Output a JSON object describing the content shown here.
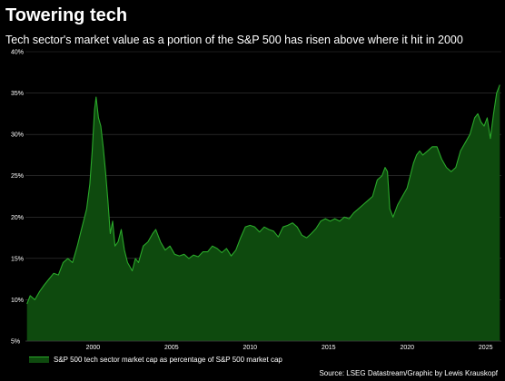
{
  "title": "Towering tech",
  "subtitle": "Tech sector's market value as a portion of the S&P 500 has risen above where it hit in 2000",
  "legend_label": "S&P 500 tech sector market cap as percentage of S&P 500 market cap",
  "source": "Source: LSEG Datastream/Graphic by Lewis Krauskopf",
  "colors": {
    "background": "#000000",
    "area_fill": "#0e4a0e",
    "line": "#2aa82a",
    "grid": "#3a3a3a",
    "text": "#ffffff"
  },
  "chart_data": {
    "type": "area",
    "title": "Towering tech",
    "subtitle": "Tech sector's market value as a portion of the S&P 500 has risen above where it hit in 2000",
    "xlabel": "",
    "ylabel": "",
    "xlim": [
      1995.7,
      2026.0
    ],
    "ylim": [
      5,
      40
    ],
    "y_ticks": [
      5,
      10,
      15,
      20,
      25,
      30,
      35,
      40
    ],
    "y_tick_labels": [
      "5%",
      "10%",
      "15%",
      "20%",
      "25%",
      "30%",
      "35%",
      "40%"
    ],
    "x_ticks": [
      2000,
      2005,
      2010,
      2015,
      2020,
      2025
    ],
    "x_tick_labels": [
      "2000",
      "2005",
      "2010",
      "2015",
      "2020",
      "2025"
    ],
    "grid": "horizontal",
    "legend_position": "bottom-left",
    "series": [
      {
        "name": "S&P 500 tech sector market cap as percentage of S&P 500 market cap",
        "x": [
          1995.8,
          1996.0,
          1996.3,
          1996.6,
          1996.9,
          1997.2,
          1997.5,
          1997.8,
          1998.1,
          1998.4,
          1998.7,
          1999.0,
          1999.2,
          1999.4,
          1999.6,
          1999.8,
          1999.95,
          2000.1,
          2000.2,
          2000.35,
          2000.5,
          2000.65,
          2000.8,
          2000.95,
          2001.1,
          2001.25,
          2001.4,
          2001.6,
          2001.8,
          2002.0,
          2002.2,
          2002.5,
          2002.7,
          2002.9,
          2003.2,
          2003.5,
          2003.8,
          2004.0,
          2004.3,
          2004.6,
          2004.9,
          2005.2,
          2005.5,
          2005.8,
          2006.1,
          2006.4,
          2006.7,
          2007.0,
          2007.3,
          2007.6,
          2007.9,
          2008.2,
          2008.5,
          2008.8,
          2009.1,
          2009.4,
          2009.7,
          2010.0,
          2010.3,
          2010.6,
          2010.9,
          2011.2,
          2011.5,
          2011.8,
          2012.1,
          2012.4,
          2012.7,
          2013.0,
          2013.3,
          2013.6,
          2013.9,
          2014.2,
          2014.5,
          2014.8,
          2015.1,
          2015.4,
          2015.7,
          2016.0,
          2016.3,
          2016.6,
          2016.9,
          2017.2,
          2017.5,
          2017.8,
          2018.1,
          2018.4,
          2018.6,
          2018.75,
          2018.9,
          2019.1,
          2019.4,
          2019.7,
          2020.0,
          2020.2,
          2020.4,
          2020.6,
          2020.8,
          2021.0,
          2021.3,
          2021.6,
          2021.9,
          2022.2,
          2022.5,
          2022.8,
          2023.1,
          2023.4,
          2023.7,
          2024.0,
          2024.3,
          2024.5,
          2024.7,
          2024.9,
          2025.1,
          2025.3,
          2025.5,
          2025.7,
          2025.9
        ],
        "values": [
          9.5,
          10.5,
          10.0,
          11.0,
          11.8,
          12.5,
          13.2,
          13.0,
          14.5,
          15.0,
          14.5,
          16.5,
          18.0,
          19.5,
          21.0,
          24.0,
          28.0,
          33.0,
          34.5,
          32.0,
          31.0,
          28.5,
          25.5,
          22.0,
          18.0,
          19.5,
          16.5,
          17.0,
          18.5,
          16.0,
          14.5,
          13.5,
          15.0,
          14.5,
          16.5,
          17.0,
          18.0,
          18.5,
          17.0,
          16.0,
          16.5,
          15.5,
          15.3,
          15.5,
          15.0,
          15.4,
          15.2,
          15.8,
          15.8,
          16.5,
          16.2,
          15.7,
          16.2,
          15.3,
          16.0,
          17.5,
          18.8,
          19.0,
          18.8,
          18.2,
          18.8,
          18.5,
          18.3,
          17.6,
          18.8,
          19.0,
          19.3,
          18.8,
          17.8,
          17.5,
          18.0,
          18.6,
          19.5,
          19.8,
          19.5,
          19.8,
          19.5,
          20.0,
          19.8,
          20.5,
          21.0,
          21.5,
          22.0,
          22.5,
          24.5,
          25.0,
          26.0,
          25.5,
          21.0,
          20.0,
          21.5,
          22.5,
          23.5,
          25.0,
          26.5,
          27.5,
          28.0,
          27.5,
          28.0,
          28.5,
          28.5,
          27.0,
          26.0,
          25.5,
          26.0,
          28.0,
          29.0,
          30.0,
          32.0,
          32.5,
          31.5,
          31.0,
          32.0,
          29.5,
          32.5,
          35.0,
          36.0
        ]
      }
    ]
  }
}
